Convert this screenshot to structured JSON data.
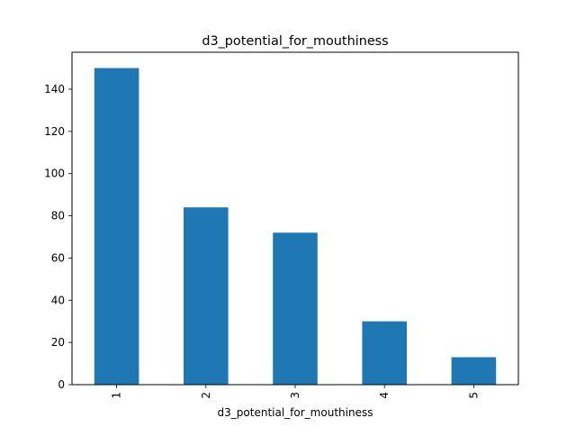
{
  "chart_data": {
    "type": "bar",
    "title": "d3_potential_for_mouthiness",
    "xlabel": "d3_potential_for_mouthiness",
    "ylabel": "",
    "categories": [
      "1",
      "2",
      "3",
      "4",
      "5"
    ],
    "values": [
      150,
      84,
      72,
      30,
      13
    ],
    "ylim": [
      0,
      157.5
    ],
    "yticks": [
      0,
      20,
      40,
      60,
      80,
      100,
      120,
      140
    ],
    "bar_color": "#1f77b4",
    "grid": false,
    "legend": "none",
    "x_tick_rotation": "vertical"
  }
}
